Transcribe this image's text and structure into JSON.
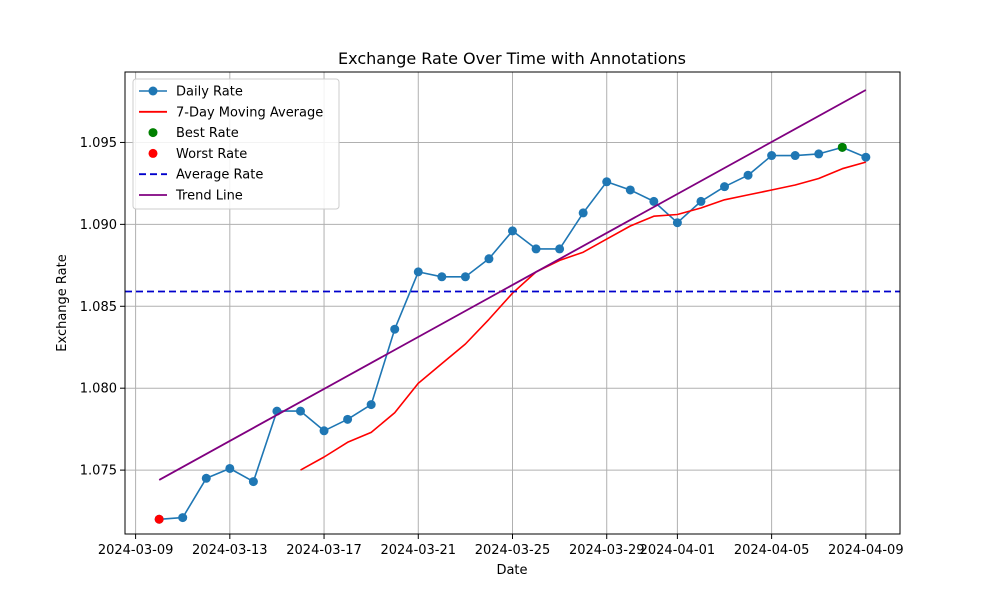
{
  "chart_data": {
    "type": "line",
    "title": "Exchange Rate Over Time with Annotations",
    "xlabel": "Date",
    "ylabel": "Exchange Rate",
    "x_start": "2024-03-10",
    "xlim": [
      "2024-03-09",
      "2024-04-10"
    ],
    "ylim": [
      1.0711,
      1.0993
    ],
    "x_ticks": [
      "2024-03-09",
      "2024-03-13",
      "2024-03-17",
      "2024-03-21",
      "2024-03-25",
      "2024-03-29",
      "2024-04-01",
      "2024-04-05",
      "2024-04-09"
    ],
    "y_ticks": [
      1.075,
      1.08,
      1.085,
      1.09,
      1.095
    ],
    "y_tick_labels": [
      "1.075",
      "1.080",
      "1.085",
      "1.090",
      "1.095"
    ],
    "grid": true,
    "legend_position": "top-left",
    "series": [
      {
        "name": "Daily Rate",
        "style": "line-marker",
        "color": "#1f77b4",
        "x": [
          "2024-03-10",
          "2024-03-11",
          "2024-03-12",
          "2024-03-13",
          "2024-03-14",
          "2024-03-15",
          "2024-03-16",
          "2024-03-17",
          "2024-03-18",
          "2024-03-19",
          "2024-03-20",
          "2024-03-21",
          "2024-03-22",
          "2024-03-23",
          "2024-03-24",
          "2024-03-25",
          "2024-03-26",
          "2024-03-27",
          "2024-03-28",
          "2024-03-29",
          "2024-03-30",
          "2024-03-31",
          "2024-04-01",
          "2024-04-02",
          "2024-04-03",
          "2024-04-04",
          "2024-04-05",
          "2024-04-06",
          "2024-04-07",
          "2024-04-08",
          "2024-04-09"
        ],
        "values": [
          1.072,
          1.0721,
          1.0745,
          1.0751,
          1.0743,
          1.0786,
          1.0786,
          1.0774,
          1.0781,
          1.079,
          1.0836,
          1.0871,
          1.0868,
          1.0868,
          1.0879,
          1.0896,
          1.0885,
          1.0885,
          1.0907,
          1.0926,
          1.0921,
          1.0914,
          1.0901,
          1.0914,
          1.0923,
          1.093,
          1.0942,
          1.0942,
          1.0943,
          1.0947,
          1.0941
        ]
      },
      {
        "name": "7-Day Moving Average",
        "style": "line",
        "color": "#ff0000",
        "x": [
          "2024-03-16",
          "2024-03-17",
          "2024-03-18",
          "2024-03-19",
          "2024-03-20",
          "2024-03-21",
          "2024-03-22",
          "2024-03-23",
          "2024-03-24",
          "2024-03-25",
          "2024-03-26",
          "2024-03-27",
          "2024-03-28",
          "2024-03-29",
          "2024-03-30",
          "2024-03-31",
          "2024-04-01",
          "2024-04-02",
          "2024-04-03",
          "2024-04-04",
          "2024-04-05",
          "2024-04-06",
          "2024-04-07",
          "2024-04-08",
          "2024-04-09"
        ],
        "values": [
          1.075,
          1.0758,
          1.0767,
          1.0773,
          1.0785,
          1.0803,
          1.0815,
          1.0827,
          1.0842,
          1.0858,
          1.0871,
          1.0878,
          1.0883,
          1.0891,
          1.0899,
          1.0905,
          1.0906,
          1.091,
          1.0915,
          1.0918,
          1.0921,
          1.0924,
          1.0928,
          1.0934,
          1.0938
        ]
      },
      {
        "name": "Best Rate",
        "style": "marker",
        "color": "#008000",
        "x": [
          "2024-04-08"
        ],
        "values": [
          1.0947
        ]
      },
      {
        "name": "Worst Rate",
        "style": "marker",
        "color": "#ff0000",
        "x": [
          "2024-03-10"
        ],
        "values": [
          1.072
        ]
      },
      {
        "name": "Average Rate",
        "style": "hline-dashed",
        "color": "#0000cc",
        "value": 1.0859
      },
      {
        "name": "Trend Line",
        "style": "line",
        "color": "#800080",
        "x": [
          "2024-03-10",
          "2024-04-09"
        ],
        "values": [
          1.0744,
          1.0982
        ]
      }
    ]
  }
}
